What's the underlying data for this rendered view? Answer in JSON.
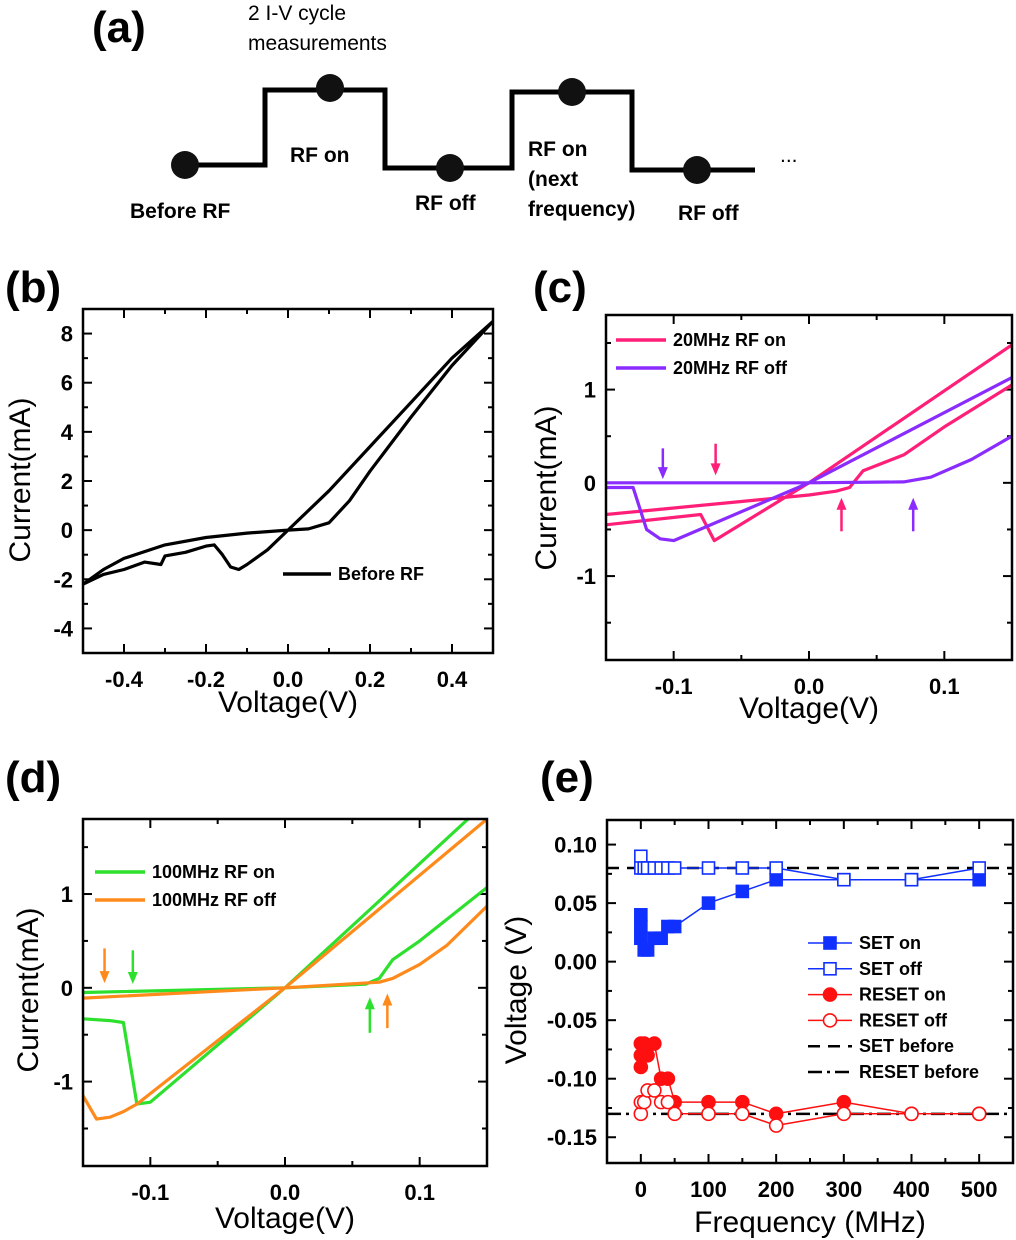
{
  "diagram": {
    "panel_label": "(a)",
    "header_line1": "2 I-V cycle",
    "header_line2": "measurements",
    "steps": [
      "Before RF",
      "RF on",
      "RF off",
      "RF on",
      "(next",
      "frequency)",
      "RF off"
    ],
    "ellipsis": "..."
  },
  "chart_data": [
    {
      "id": "b",
      "panel_label": "(b)",
      "type": "line",
      "xlabel": "Voltage(V)",
      "ylabel": "Current(mA)",
      "xlim": [
        -0.5,
        0.5
      ],
      "ylim": [
        -5,
        9
      ],
      "xticks": [
        [
          -0.4,
          "-0.4"
        ],
        [
          -0.2,
          "-0.2"
        ],
        [
          0,
          "0.0"
        ],
        [
          0.2,
          "0.2"
        ],
        [
          0.4,
          "0.4"
        ]
      ],
      "xminor": 0.1,
      "yticks": [
        [
          -4,
          "-4"
        ],
        [
          -2,
          "-2"
        ],
        [
          0,
          "0"
        ],
        [
          2,
          "2"
        ],
        [
          4,
          "4"
        ],
        [
          6,
          "6"
        ],
        [
          8,
          "8"
        ]
      ],
      "yminor": 1,
      "legend_position": "lower-right",
      "series": [
        {
          "name": "Before RF",
          "color": "#000000",
          "points": [
            [
              -0.5,
              -2.2
            ],
            [
              -0.45,
              -1.6
            ],
            [
              -0.4,
              -1.15
            ],
            [
              -0.3,
              -0.6
            ],
            [
              -0.2,
              -0.3
            ],
            [
              -0.1,
              -0.12
            ],
            [
              0,
              0
            ],
            [
              0.05,
              0.05
            ],
            [
              0.1,
              0.3
            ],
            [
              0.15,
              1.2
            ],
            [
              0.2,
              2.4
            ],
            [
              0.3,
              4.6
            ],
            [
              0.4,
              6.7
            ],
            [
              0.5,
              8.5
            ],
            [
              0.4,
              7.0
            ],
            [
              0.3,
              5.2
            ],
            [
              0.2,
              3.4
            ],
            [
              0.1,
              1.6
            ],
            [
              0,
              0
            ],
            [
              -0.05,
              -0.8
            ],
            [
              -0.1,
              -1.4
            ],
            [
              -0.12,
              -1.6
            ],
            [
              -0.14,
              -1.5
            ],
            [
              -0.16,
              -1.0
            ],
            [
              -0.18,
              -0.6
            ],
            [
              -0.2,
              -0.65
            ],
            [
              -0.25,
              -0.9
            ],
            [
              -0.3,
              -1.05
            ],
            [
              -0.31,
              -1.4
            ],
            [
              -0.35,
              -1.3
            ],
            [
              -0.4,
              -1.6
            ],
            [
              -0.45,
              -1.8
            ],
            [
              -0.5,
              -2.2
            ]
          ]
        }
      ],
      "arrows": []
    },
    {
      "id": "c",
      "panel_label": "(c)",
      "type": "line",
      "xlabel": "Voltage(V)",
      "ylabel": "Current(mA)",
      "xlim": [
        -0.15,
        0.15
      ],
      "ylim": [
        -1.9,
        1.8
      ],
      "xticks": [
        [
          -0.1,
          "-0.1"
        ],
        [
          0,
          "0.0"
        ],
        [
          0.1,
          "0.1"
        ]
      ],
      "xminor": 0.05,
      "yticks": [
        [
          -1,
          "-1"
        ],
        [
          0,
          "0"
        ],
        [
          1,
          "1"
        ]
      ],
      "yminor": 0.5,
      "legend_position": "top-left",
      "series": [
        {
          "name": "20MHz RF on",
          "color": "#ff1f78",
          "points": [
            [
              -0.15,
              -0.34
            ],
            [
              -0.1,
              -0.27
            ],
            [
              -0.05,
              -0.2
            ],
            [
              0,
              -0.13
            ],
            [
              0.02,
              -0.09
            ],
            [
              0.03,
              -0.05
            ],
            [
              0.04,
              0.13
            ],
            [
              0.07,
              0.3
            ],
            [
              0.1,
              0.6
            ],
            [
              0.15,
              1.05
            ],
            null,
            [
              -0.15,
              -0.45
            ],
            [
              -0.08,
              -0.34
            ],
            [
              -0.07,
              -0.62
            ],
            [
              0,
              0
            ],
            [
              0.15,
              1.48
            ]
          ]
        },
        {
          "name": "20MHz RF off",
          "color": "#8a2bff",
          "points": [
            [
              -0.15,
              -0.05
            ],
            [
              -0.13,
              -0.05
            ],
            [
              -0.12,
              -0.5
            ],
            [
              -0.11,
              -0.6
            ],
            [
              -0.1,
              -0.62
            ],
            [
              0,
              0
            ],
            [
              0.15,
              1.13
            ],
            null,
            [
              -0.15,
              0
            ],
            [
              0,
              0
            ],
            [
              0.07,
              0.01
            ],
            [
              0.09,
              0.06
            ],
            [
              0.12,
              0.25
            ],
            [
              0.15,
              0.5
            ]
          ]
        }
      ],
      "arrows": [
        {
          "x": -0.108,
          "direction": "down",
          "from": 0.37,
          "to": 0.04,
          "color": "#8a2bff"
        },
        {
          "x": -0.069,
          "direction": "down",
          "from": 0.42,
          "to": 0.08,
          "color": "#ff1f78"
        },
        {
          "x": 0.024,
          "direction": "up",
          "from": -0.52,
          "to": -0.16,
          "color": "#ff1f78"
        },
        {
          "x": 0.077,
          "direction": "up",
          "from": -0.52,
          "to": -0.16,
          "color": "#8a2bff"
        }
      ]
    },
    {
      "id": "d",
      "panel_label": "(d)",
      "type": "line",
      "xlabel": "Voltage(V)",
      "ylabel": "Current(mA)",
      "xlim": [
        -0.15,
        0.15
      ],
      "ylim": [
        -1.9,
        1.8
      ],
      "xticks": [
        [
          -0.1,
          "-0.1"
        ],
        [
          0,
          "0.0"
        ],
        [
          0.1,
          "0.1"
        ]
      ],
      "xminor": 0.05,
      "yticks": [
        [
          -1,
          "-1"
        ],
        [
          0,
          "0"
        ],
        [
          1,
          "1"
        ]
      ],
      "yminor": 0.5,
      "legend_position": "top-left",
      "series": [
        {
          "name": "100MHz RF on",
          "color": "#2de02d",
          "points": [
            [
              -0.15,
              -0.05
            ],
            [
              0,
              0
            ],
            [
              0.06,
              0.04
            ],
            [
              0.07,
              0.1
            ],
            [
              0.08,
              0.3
            ],
            [
              0.1,
              0.5
            ],
            [
              0.15,
              1.07
            ],
            null,
            [
              -0.15,
              -0.33
            ],
            [
              -0.13,
              -0.35
            ],
            [
              -0.12,
              -0.37
            ],
            [
              -0.11,
              -1.24
            ],
            [
              -0.1,
              -1.22
            ],
            [
              0,
              0
            ],
            [
              0.136,
              1.8
            ]
          ]
        },
        {
          "name": "100MHz RF off",
          "color": "#ff8a1c",
          "points": [
            [
              -0.15,
              -0.11
            ],
            [
              0,
              0
            ],
            [
              0.07,
              0.06
            ],
            [
              0.08,
              0.1
            ],
            [
              0.1,
              0.25
            ],
            [
              0.12,
              0.45
            ],
            [
              0.15,
              0.87
            ],
            null,
            [
              -0.15,
              -1.15
            ],
            [
              -0.14,
              -1.4
            ],
            [
              -0.13,
              -1.38
            ],
            [
              -0.12,
              -1.32
            ],
            [
              -0.11,
              -1.24
            ],
            [
              0,
              0
            ],
            [
              0.15,
              1.8
            ]
          ]
        }
      ],
      "arrows": [
        {
          "x": -0.134,
          "direction": "down",
          "from": 0.42,
          "to": 0.05,
          "color": "#ff8a1c"
        },
        {
          "x": -0.113,
          "direction": "down",
          "from": 0.4,
          "to": 0.04,
          "color": "#2de02d"
        },
        {
          "x": 0.063,
          "direction": "up",
          "from": -0.48,
          "to": -0.1,
          "color": "#2de02d"
        },
        {
          "x": 0.076,
          "direction": "up",
          "from": -0.43,
          "to": -0.06,
          "color": "#ff8a1c"
        }
      ]
    },
    {
      "id": "e",
      "panel_label": "(e)",
      "type": "scatter",
      "xlabel": "Frequency (MHz)",
      "ylabel": "Voltage (V)",
      "xlim": [
        -50,
        550
      ],
      "ylim": [
        -0.172,
        0.121
      ],
      "xticks": [
        [
          0,
          "0"
        ],
        [
          100,
          "100"
        ],
        [
          200,
          "200"
        ],
        [
          300,
          "300"
        ],
        [
          400,
          "400"
        ],
        [
          500,
          "500"
        ]
      ],
      "xminor": 50,
      "yticks": [
        [
          -0.15,
          "-0.15"
        ],
        [
          -0.1,
          "-0.10"
        ],
        [
          -0.05,
          "-0.05"
        ],
        [
          0,
          "0.00"
        ],
        [
          0.05,
          "0.05"
        ],
        [
          0.1,
          "0.10"
        ]
      ],
      "yminor": 0.025,
      "legend_position": "center-right",
      "series": [
        {
          "name": "SET on",
          "color": "#1030ff",
          "marker": "square-filled",
          "points": [
            [
              0,
              0.04
            ],
            [
              0,
              0.03
            ],
            [
              0,
              0.02
            ],
            [
              5,
              0.01
            ],
            [
              10,
              0.01
            ],
            [
              20,
              0.02
            ],
            [
              30,
              0.02
            ],
            [
              40,
              0.03
            ],
            [
              50,
              0.03
            ],
            [
              100,
              0.05
            ],
            [
              150,
              0.06
            ],
            [
              200,
              0.07
            ],
            [
              300,
              0.07
            ],
            [
              400,
              0.07
            ],
            [
              500,
              0.07
            ]
          ]
        },
        {
          "name": "SET off",
          "color": "#1030ff",
          "marker": "square-open",
          "points": [
            [
              0,
              0.09
            ],
            [
              0,
              0.08
            ],
            [
              5,
              0.08
            ],
            [
              10,
              0.08
            ],
            [
              20,
              0.08
            ],
            [
              30,
              0.08
            ],
            [
              40,
              0.08
            ],
            [
              50,
              0.08
            ],
            [
              100,
              0.08
            ],
            [
              150,
              0.08
            ],
            [
              200,
              0.08
            ],
            [
              300,
              0.07
            ],
            [
              400,
              0.07
            ],
            [
              500,
              0.08
            ]
          ]
        },
        {
          "name": "RESET on",
          "color": "#ff1010",
          "marker": "circle-filled",
          "points": [
            [
              0,
              -0.09
            ],
            [
              0,
              -0.08
            ],
            [
              0,
              -0.07
            ],
            [
              5,
              -0.07
            ],
            [
              10,
              -0.08
            ],
            [
              20,
              -0.07
            ],
            [
              30,
              -0.1
            ],
            [
              40,
              -0.1
            ],
            [
              50,
              -0.12
            ],
            [
              100,
              -0.12
            ],
            [
              150,
              -0.12
            ],
            [
              200,
              -0.13
            ],
            [
              300,
              -0.12
            ],
            [
              400,
              -0.13
            ],
            [
              500,
              -0.13
            ]
          ]
        },
        {
          "name": "RESET off",
          "color": "#ff1010",
          "marker": "circle-open",
          "points": [
            [
              0,
              -0.13
            ],
            [
              0,
              -0.12
            ],
            [
              5,
              -0.12
            ],
            [
              10,
              -0.11
            ],
            [
              20,
              -0.11
            ],
            [
              30,
              -0.12
            ],
            [
              40,
              -0.12
            ],
            [
              50,
              -0.13
            ],
            [
              100,
              -0.13
            ],
            [
              150,
              -0.13
            ],
            [
              200,
              -0.14
            ],
            [
              300,
              -0.13
            ],
            [
              400,
              -0.13
            ],
            [
              500,
              -0.13
            ]
          ]
        }
      ],
      "reference_lines": [
        {
          "name": "SET before",
          "y": 0.08,
          "style": "dashed",
          "color": "#000000"
        },
        {
          "name": "RESET before",
          "y": -0.13,
          "style": "dash-dot",
          "color": "#000000"
        }
      ],
      "arrows": []
    }
  ]
}
